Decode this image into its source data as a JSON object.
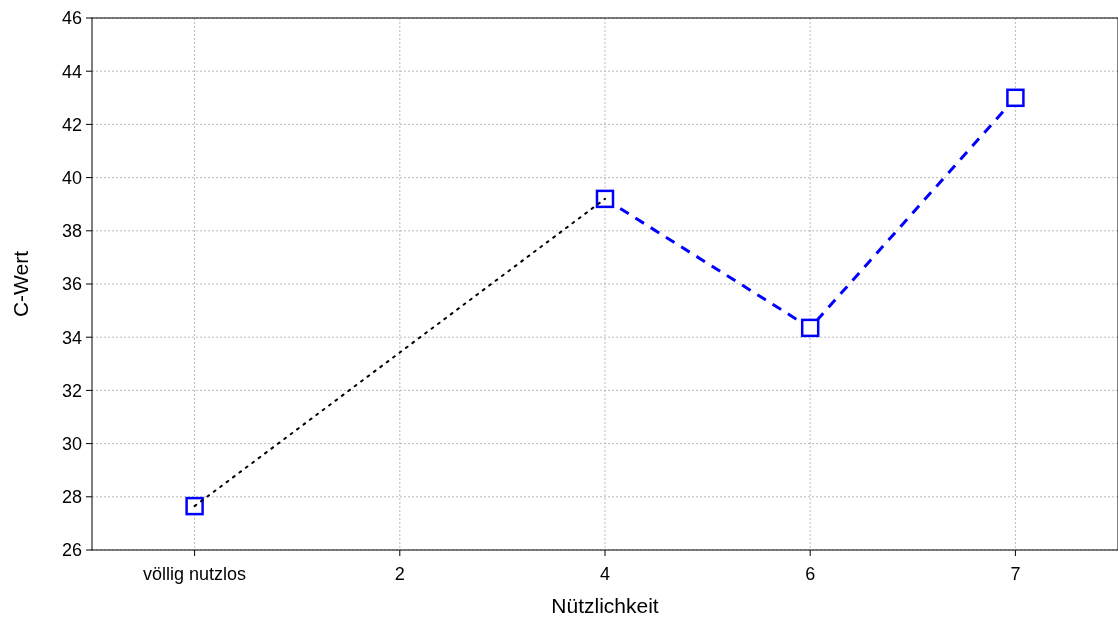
{
  "chart_data": {
    "type": "line",
    "xlabel": "Nützlichkeit",
    "ylabel": "C-Wert",
    "categories": [
      "völlig nutzlos",
      "2",
      "4",
      "6",
      "7"
    ],
    "series": [
      {
        "color": "#000000",
        "line_style": "dotted",
        "marker": "none",
        "x": [
          "völlig nutzlos",
          "4"
        ],
        "values": [
          27.65,
          39.2
        ]
      },
      {
        "color": "#0000ff",
        "line_style": "dashed",
        "marker": "square",
        "values": [
          27.65,
          null,
          39.2,
          34.35,
          43.0
        ]
      }
    ],
    "ylim": [
      26,
      46
    ],
    "yticks": [
      26,
      28,
      30,
      32,
      34,
      36,
      38,
      40,
      42,
      44,
      46
    ],
    "grid": true
  }
}
